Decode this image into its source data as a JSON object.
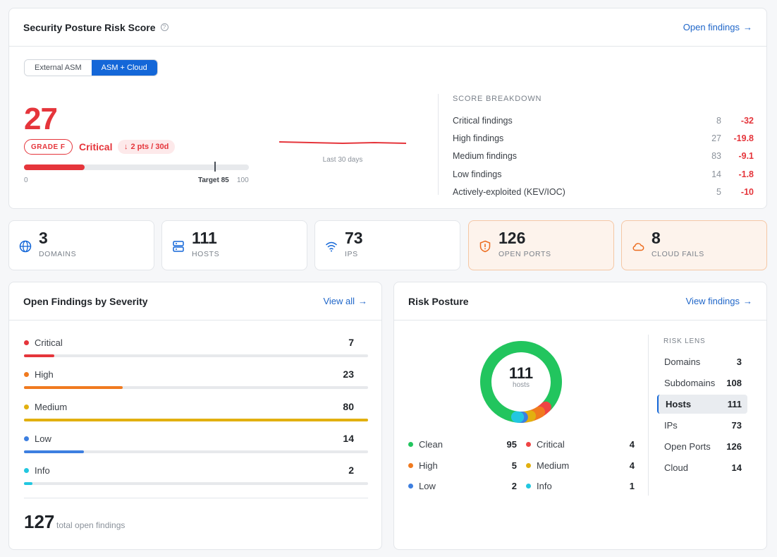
{
  "score_card": {
    "title": "Security Posture Risk Score",
    "link": "Open findings",
    "tabs": [
      "External ASM",
      "ASM + Cloud"
    ],
    "active_tab": "ASM + Cloud",
    "score": "27",
    "score_value": 27,
    "grade": "GRADE F",
    "level": "Critical",
    "trend": "2 pts / 30d",
    "scale_min": "0",
    "scale_max": "100",
    "target_label": "Target 85",
    "target_value": 85,
    "sparkline_label": "Last 30 days",
    "breakdown_title": "SCORE BREAKDOWN",
    "breakdown": [
      {
        "label": "Critical findings",
        "count": "8",
        "delta": "-32"
      },
      {
        "label": "High findings",
        "count": "27",
        "delta": "-19.8"
      },
      {
        "label": "Medium findings",
        "count": "83",
        "delta": "-9.1"
      },
      {
        "label": "Low findings",
        "count": "14",
        "delta": "-1.8"
      },
      {
        "label": "Actively-exploited (KEV/IOC)",
        "count": "5",
        "delta": "-10"
      }
    ]
  },
  "stats": [
    {
      "value": "3",
      "label": "DOMAINS",
      "icon": "globe-icon"
    },
    {
      "value": "111",
      "label": "HOSTS",
      "icon": "server-icon"
    },
    {
      "value": "73",
      "label": "IPS",
      "icon": "wifi-icon"
    },
    {
      "value": "126",
      "label": "OPEN PORTS",
      "icon": "shield-alert-icon"
    },
    {
      "value": "8",
      "label": "CLOUD FAILS",
      "icon": "cloud-icon"
    }
  ],
  "severity": {
    "title": "Open Findings by Severity",
    "link": "View all",
    "rows": [
      {
        "name": "Critical",
        "value": "7",
        "fill": 0.088,
        "color": "#e5353b"
      },
      {
        "name": "High",
        "value": "23",
        "fill": 0.287,
        "color": "#f07a1f"
      },
      {
        "name": "Medium",
        "value": "80",
        "fill": 1.0,
        "color": "#e2b00f"
      },
      {
        "name": "Low",
        "value": "14",
        "fill": 0.175,
        "color": "#3d7fe0"
      },
      {
        "name": "Info",
        "value": "2",
        "fill": 0.025,
        "color": "#22c7e0"
      }
    ],
    "total": "127",
    "total_label": "total open findings"
  },
  "risk": {
    "title": "Risk Posture",
    "link": "View findings",
    "total": "111",
    "total_label": "hosts",
    "legend": [
      {
        "name": "Clean",
        "value": "95",
        "count": 95,
        "color": "#22c55e"
      },
      {
        "name": "Critical",
        "value": "4",
        "count": 4,
        "color": "#ef4444"
      },
      {
        "name": "High",
        "value": "5",
        "count": 5,
        "color": "#f07a1f"
      },
      {
        "name": "Medium",
        "value": "4",
        "count": 4,
        "color": "#e2b00f"
      },
      {
        "name": "Low",
        "value": "2",
        "count": 2,
        "color": "#3d7fe0"
      },
      {
        "name": "Info",
        "value": "1",
        "count": 1,
        "color": "#22c7e0"
      }
    ],
    "lens_title": "RISK LENS",
    "lens": [
      {
        "name": "Domains",
        "value": "3"
      },
      {
        "name": "Subdomains",
        "value": "108"
      },
      {
        "name": "Hosts",
        "value": "111"
      },
      {
        "name": "IPs",
        "value": "73"
      },
      {
        "name": "Open Ports",
        "value": "126"
      },
      {
        "name": "Cloud",
        "value": "14"
      }
    ],
    "active_lens": "Hosts"
  },
  "colors": {
    "accent": "#1467d8",
    "danger": "#e5353b",
    "warn_bg": "#fdf3ec"
  }
}
